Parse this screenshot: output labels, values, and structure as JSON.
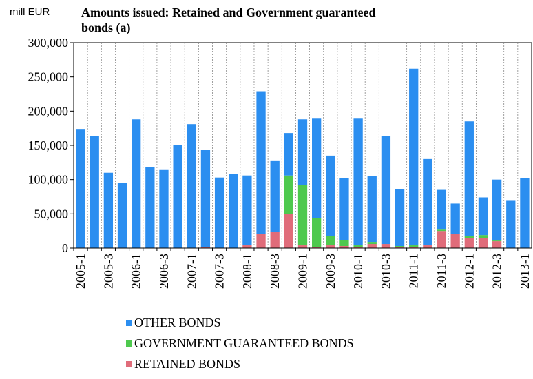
{
  "chart_data": {
    "type": "stacked_bar",
    "title": "Amounts issued: Retained and Government guaranteed bonds (a)",
    "y_label": "mill EUR",
    "categories": [
      "2005-1",
      null,
      "2005-3",
      null,
      "2006-1",
      null,
      "2006-3",
      null,
      "2007-1",
      null,
      "2007-3",
      null,
      "2008-1",
      null,
      "2008-3",
      null,
      "2009-1",
      null,
      "2009-3",
      null,
      "2010-1",
      null,
      "2010-3",
      null,
      "2011-1",
      null,
      "2011-3",
      null,
      "2012-1",
      null,
      "2012-3",
      null,
      "2013-1"
    ],
    "series": [
      {
        "name": "OTHER BONDS",
        "color": "#2b8ef0",
        "values": [
          174000,
          164000,
          110000,
          95000,
          188000,
          118000,
          115000,
          151000,
          181000,
          141000,
          103000,
          108000,
          102000,
          208000,
          104000,
          62000,
          96000,
          146000,
          117000,
          90000,
          186000,
          96000,
          158000,
          83000,
          258000,
          126000,
          58000,
          44000,
          167000,
          55000,
          89000,
          70000,
          102000
        ]
      },
      {
        "name": "GOVERNMENT GUARANTEED BONDS",
        "color": "#4ec94e",
        "values": [
          0,
          0,
          0,
          0,
          0,
          0,
          0,
          0,
          0,
          0,
          0,
          0,
          0,
          0,
          0,
          56000,
          88000,
          42000,
          14000,
          9000,
          2000,
          3000,
          0,
          1000,
          2000,
          0,
          2000,
          0,
          3000,
          4000,
          1000,
          0,
          0
        ]
      },
      {
        "name": "RETAINED BONDS",
        "color": "#e06c7a",
        "values": [
          0,
          0,
          0,
          0,
          0,
          0,
          0,
          0,
          0,
          2000,
          0,
          0,
          4000,
          21000,
          24000,
          50000,
          4000,
          2000,
          4000,
          3000,
          2000,
          6000,
          6000,
          2000,
          2000,
          4000,
          25000,
          21000,
          15000,
          15000,
          10000,
          0,
          0
        ]
      }
    ],
    "ylim": [
      0,
      300000
    ],
    "yticks": [
      0,
      {
        "value": 50000,
        "label": "50,000"
      },
      {
        "value": 100000,
        "label": "100,000"
      },
      {
        "value": 150000,
        "label": "150,000"
      },
      {
        "value": 200000,
        "label": "200,000"
      },
      {
        "value": 250000,
        "label": "250,000"
      },
      {
        "value": 300000,
        "label": "300,000"
      }
    ],
    "grid": "vertical"
  }
}
